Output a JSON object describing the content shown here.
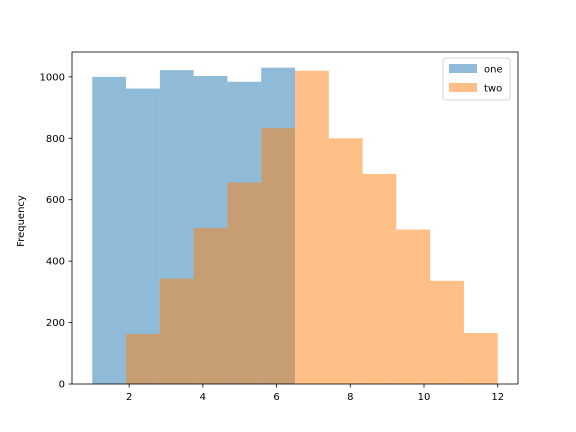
{
  "chart_data": {
    "type": "bar",
    "title": "",
    "xlabel": "",
    "ylabel": "Frequency",
    "xlim": [
      0.45,
      12.55
    ],
    "ylim": [
      0,
      1081
    ],
    "xticks": [
      2,
      4,
      6,
      8,
      10,
      12
    ],
    "yticks": [
      0,
      200,
      400,
      600,
      800,
      1000
    ],
    "grid": false,
    "legend": {
      "position": "top-right",
      "entries": [
        "one",
        "two"
      ]
    },
    "series": [
      {
        "name": "one",
        "color": "#1f77b4",
        "alpha": 0.5,
        "bin_edges": [
          1.0,
          1.9167,
          2.8333,
          3.75,
          4.6667,
          5.5833,
          6.5
        ],
        "values": [
          1000,
          962,
          1022,
          1003,
          984,
          1030
        ]
      },
      {
        "name": "two",
        "color": "#ff7f0e",
        "alpha": 0.5,
        "bin_edges": [
          1.9167,
          2.8333,
          3.75,
          4.6667,
          5.5833,
          6.5,
          7.4167,
          8.3333,
          9.25,
          10.1667,
          11.0833,
          12.0
        ],
        "values": [
          163,
          343,
          508,
          656,
          833,
          1020,
          800,
          684,
          503,
          336,
          166
        ]
      }
    ]
  }
}
